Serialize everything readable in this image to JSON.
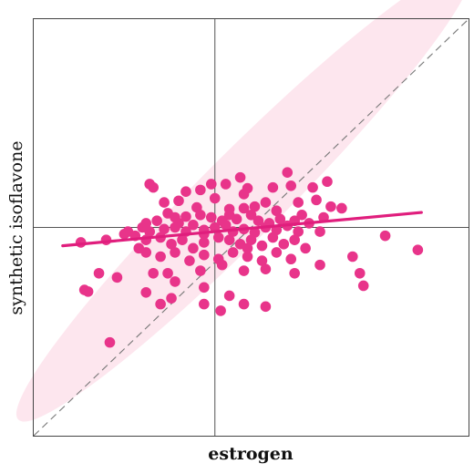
{
  "chart_data": {
    "type": "scatter",
    "xlabel": "estrogen",
    "ylabel": "synthetic isoflavone",
    "xlim": [
      -2.5,
      3.5
    ],
    "ylim": [
      -2.5,
      2.5
    ],
    "grid": false,
    "reference_lines": {
      "x": 0,
      "y": 0,
      "identity_diagonal": true
    },
    "regression_line": {
      "from": [
        -2.1,
        -0.22
      ],
      "to": [
        2.85,
        0.18
      ]
    },
    "confidence_ellipse": {
      "shown": true
    },
    "colors": {
      "points": "#e8348a",
      "regression": "#e01e7d",
      "ellipse_fill": "#fde6ee",
      "reference": "#555555",
      "diagonal": "#777777",
      "frame": "#444444"
    },
    "points": [
      [
        -0.9,
        0.52
      ],
      [
        -0.85,
        0.48
      ],
      [
        -0.4,
        0.43
      ],
      [
        -0.2,
        0.45
      ],
      [
        -0.05,
        0.52
      ],
      [
        0.15,
        0.52
      ],
      [
        0.35,
        0.6
      ],
      [
        0.45,
        0.47
      ],
      [
        0.4,
        0.4
      ],
      [
        0.8,
        0.48
      ],
      [
        1.0,
        0.66
      ],
      [
        1.05,
        0.5
      ],
      [
        1.35,
        0.48
      ],
      [
        1.55,
        0.55
      ],
      [
        1.4,
        0.33
      ],
      [
        1.15,
        0.3
      ],
      [
        1.6,
        0.25
      ],
      [
        1.75,
        0.23
      ],
      [
        -0.7,
        0.3
      ],
      [
        -0.5,
        0.32
      ],
      [
        -0.25,
        0.24
      ],
      [
        0.0,
        0.35
      ],
      [
        0.2,
        0.22
      ],
      [
        0.4,
        0.23
      ],
      [
        0.55,
        0.25
      ],
      [
        0.7,
        0.3
      ],
      [
        0.85,
        0.2
      ],
      [
        1.2,
        0.15
      ],
      [
        1.5,
        0.12
      ],
      [
        1.3,
        0.05
      ],
      [
        -0.8,
        0.08
      ],
      [
        -0.65,
        0.17
      ],
      [
        -0.55,
        0.12
      ],
      [
        -0.5,
        0.05
      ],
      [
        -0.4,
        0.13
      ],
      [
        -0.2,
        0.15
      ],
      [
        -0.05,
        0.12
      ],
      [
        0.1,
        0.08
      ],
      [
        0.3,
        0.1
      ],
      [
        0.5,
        0.15
      ],
      [
        0.6,
        0.08
      ],
      [
        0.75,
        0.05
      ],
      [
        0.9,
        0.1
      ],
      [
        1.1,
        0.08
      ],
      [
        -1.2,
        -0.05
      ],
      [
        -1.0,
        0.0
      ],
      [
        -0.9,
        -0.05
      ],
      [
        -0.7,
        -0.02
      ],
      [
        -0.55,
        0.0
      ],
      [
        -0.4,
        -0.05
      ],
      [
        -0.3,
        0.03
      ],
      [
        -0.15,
        -0.03
      ],
      [
        0.0,
        0.0
      ],
      [
        0.15,
        0.03
      ],
      [
        0.25,
        -0.05
      ],
      [
        0.4,
        -0.02
      ],
      [
        0.55,
        -0.06
      ],
      [
        0.7,
        0.0
      ],
      [
        0.85,
        -0.03
      ],
      [
        1.0,
        0.02
      ],
      [
        1.15,
        -0.05
      ],
      [
        1.45,
        -0.05
      ],
      [
        -1.5,
        -0.15
      ],
      [
        -1.25,
        -0.08
      ],
      [
        -1.1,
        -0.1
      ],
      [
        -0.95,
        -0.15
      ],
      [
        -0.75,
        -0.12
      ],
      [
        -0.6,
        -0.2
      ],
      [
        -0.45,
        -0.15
      ],
      [
        -0.3,
        -0.25
      ],
      [
        -0.15,
        -0.18
      ],
      [
        0.05,
        -0.12
      ],
      [
        0.2,
        -0.15
      ],
      [
        0.35,
        -0.2
      ],
      [
        0.5,
        -0.15
      ],
      [
        0.65,
        -0.22
      ],
      [
        0.8,
        -0.12
      ],
      [
        0.95,
        -0.2
      ],
      [
        1.1,
        -0.15
      ],
      [
        1.25,
        -0.25
      ],
      [
        -0.95,
        -0.3
      ],
      [
        -0.75,
        -0.35
      ],
      [
        -0.55,
        -0.3
      ],
      [
        -0.35,
        -0.4
      ],
      [
        -0.15,
        -0.33
      ],
      [
        0.05,
        -0.38
      ],
      [
        0.25,
        -0.3
      ],
      [
        0.45,
        -0.35
      ],
      [
        0.65,
        -0.4
      ],
      [
        0.85,
        -0.3
      ],
      [
        1.05,
        -0.38
      ],
      [
        -0.85,
        -0.55
      ],
      [
        -0.55,
        -0.65
      ],
      [
        -0.2,
        -0.52
      ],
      [
        0.1,
        -0.45
      ],
      [
        0.4,
        -0.52
      ],
      [
        0.7,
        -0.5
      ],
      [
        1.1,
        -0.55
      ],
      [
        -1.35,
        -0.6
      ],
      [
        -0.95,
        -0.78
      ],
      [
        -0.6,
        -0.85
      ],
      [
        -0.15,
        -0.72
      ],
      [
        0.2,
        -0.82
      ],
      [
        0.7,
        -0.95
      ],
      [
        1.45,
        -0.45
      ],
      [
        1.9,
        -0.35
      ],
      [
        2.0,
        -0.55
      ],
      [
        2.05,
        -0.7
      ],
      [
        -1.85,
        -0.18
      ],
      [
        -1.6,
        -0.55
      ],
      [
        -1.8,
        -0.75
      ],
      [
        -1.75,
        -0.77
      ],
      [
        -0.75,
        -0.92
      ],
      [
        -0.65,
        -0.55
      ],
      [
        -0.15,
        -0.92
      ],
      [
        0.4,
        -0.92
      ],
      [
        0.08,
        -1.0
      ],
      [
        -0.15,
        -0.08
      ],
      [
        0.45,
        -0.25
      ],
      [
        0.2,
        0.15
      ],
      [
        -0.95,
        0.05
      ],
      [
        -1.05,
        -0.25
      ],
      [
        -1.45,
        -1.38
      ],
      [
        2.35,
        -0.1
      ],
      [
        2.8,
        -0.27
      ]
    ]
  }
}
